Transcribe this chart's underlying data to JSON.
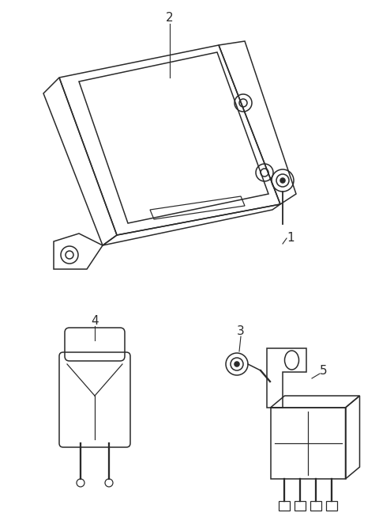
{
  "background_color": "#ffffff",
  "fig_width": 4.8,
  "fig_height": 6.62,
  "dpi": 100,
  "line_color": "#2a2a2a",
  "line_width": 1.1,
  "label_fontsize": 11
}
